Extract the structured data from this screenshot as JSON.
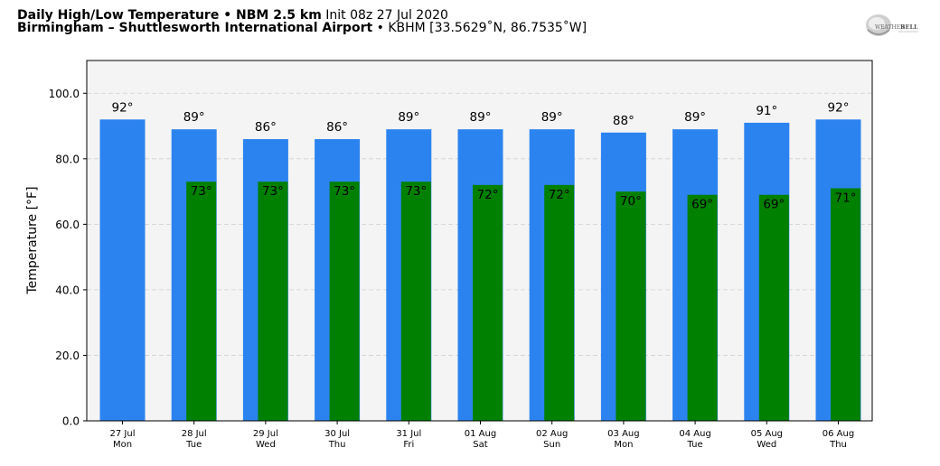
{
  "header": {
    "title_bold": "Daily High/Low Temperature • NBM 2.5 km",
    "title_init": "Init 08z 27 Jul 2020",
    "station_bold": "Birmingham – Shuttlesworth International Airport",
    "station_rest": "• KBHM [33.5629˚N, 86.7535˚W]"
  },
  "logo": {
    "text": "WeatherBELL"
  },
  "chart_data": {
    "type": "bar",
    "ylabel": "Temperature [°F]",
    "xlabel": "",
    "ylim": [
      0,
      110
    ],
    "yticks": [
      "0.0",
      "20.0",
      "40.0",
      "60.0",
      "80.0",
      "100.0"
    ],
    "ytick_values": [
      0,
      20,
      40,
      60,
      80,
      100
    ],
    "grid": true,
    "categories": [
      {
        "date": "27 Jul",
        "day": "Mon"
      },
      {
        "date": "28 Jul",
        "day": "Tue"
      },
      {
        "date": "29 Jul",
        "day": "Wed"
      },
      {
        "date": "30 Jul",
        "day": "Thu"
      },
      {
        "date": "31 Jul",
        "day": "Fri"
      },
      {
        "date": "01 Aug",
        "day": "Sat"
      },
      {
        "date": "02 Aug",
        "day": "Sun"
      },
      {
        "date": "03 Aug",
        "day": "Mon"
      },
      {
        "date": "04 Aug",
        "day": "Tue"
      },
      {
        "date": "05 Aug",
        "day": "Wed"
      },
      {
        "date": "06 Aug",
        "day": "Thu"
      }
    ],
    "series": [
      {
        "key": "high",
        "color": "#2b83f0",
        "values": [
          92,
          89,
          86,
          86,
          89,
          89,
          89,
          88,
          89,
          91,
          92
        ],
        "labels": [
          "92°",
          "89°",
          "86°",
          "86°",
          "89°",
          "89°",
          "89°",
          "88°",
          "89°",
          "91°",
          "92°"
        ]
      },
      {
        "key": "low",
        "color": "#008000",
        "values": [
          null,
          73,
          73,
          73,
          73,
          72,
          72,
          70,
          69,
          69,
          71
        ],
        "labels": [
          null,
          "73°",
          "73°",
          "73°",
          "73°",
          "72°",
          "72°",
          "70°",
          "69°",
          "69°",
          "71°"
        ]
      }
    ]
  }
}
